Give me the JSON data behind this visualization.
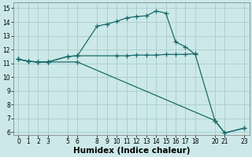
{
  "line1_x": [
    0,
    1,
    2,
    3,
    5,
    6,
    8,
    9,
    10,
    11,
    12,
    13,
    14,
    15,
    16,
    17,
    18,
    20,
    21,
    23
  ],
  "line1_y": [
    11.3,
    11.15,
    11.1,
    11.1,
    11.5,
    11.55,
    13.7,
    13.85,
    14.05,
    14.3,
    14.4,
    14.45,
    14.8,
    14.65,
    12.55,
    12.2,
    11.65,
    6.85,
    5.95,
    6.3
  ],
  "line2_x": [
    0,
    1,
    2,
    3,
    5,
    6,
    10,
    11,
    12,
    13,
    14,
    15,
    16,
    17,
    18
  ],
  "line2_y": [
    11.3,
    11.15,
    11.1,
    11.1,
    11.5,
    11.55,
    11.55,
    11.55,
    11.6,
    11.6,
    11.6,
    11.65,
    11.65,
    11.65,
    11.7
  ],
  "line3_x": [
    0,
    1,
    2,
    3,
    6,
    20,
    21,
    23
  ],
  "line3_y": [
    11.3,
    11.15,
    11.1,
    11.1,
    11.1,
    6.85,
    5.95,
    6.3
  ],
  "bg_color": "#cce8e8",
  "grid_color": "#aacccc",
  "line_color": "#1a6b6b",
  "marker": "+",
  "markersize": 4,
  "linewidth": 0.9,
  "xlabel": "Humidex (Indice chaleur)",
  "xlim": [
    -0.5,
    23.5
  ],
  "ylim": [
    5.8,
    15.4
  ],
  "xticks": [
    0,
    1,
    2,
    3,
    5,
    6,
    8,
    9,
    10,
    11,
    12,
    13,
    14,
    15,
    16,
    17,
    18,
    20,
    21,
    23
  ],
  "yticks": [
    6,
    7,
    8,
    9,
    10,
    11,
    12,
    13,
    14,
    15
  ],
  "tick_fontsize": 5.5,
  "xlabel_fontsize": 7.5
}
